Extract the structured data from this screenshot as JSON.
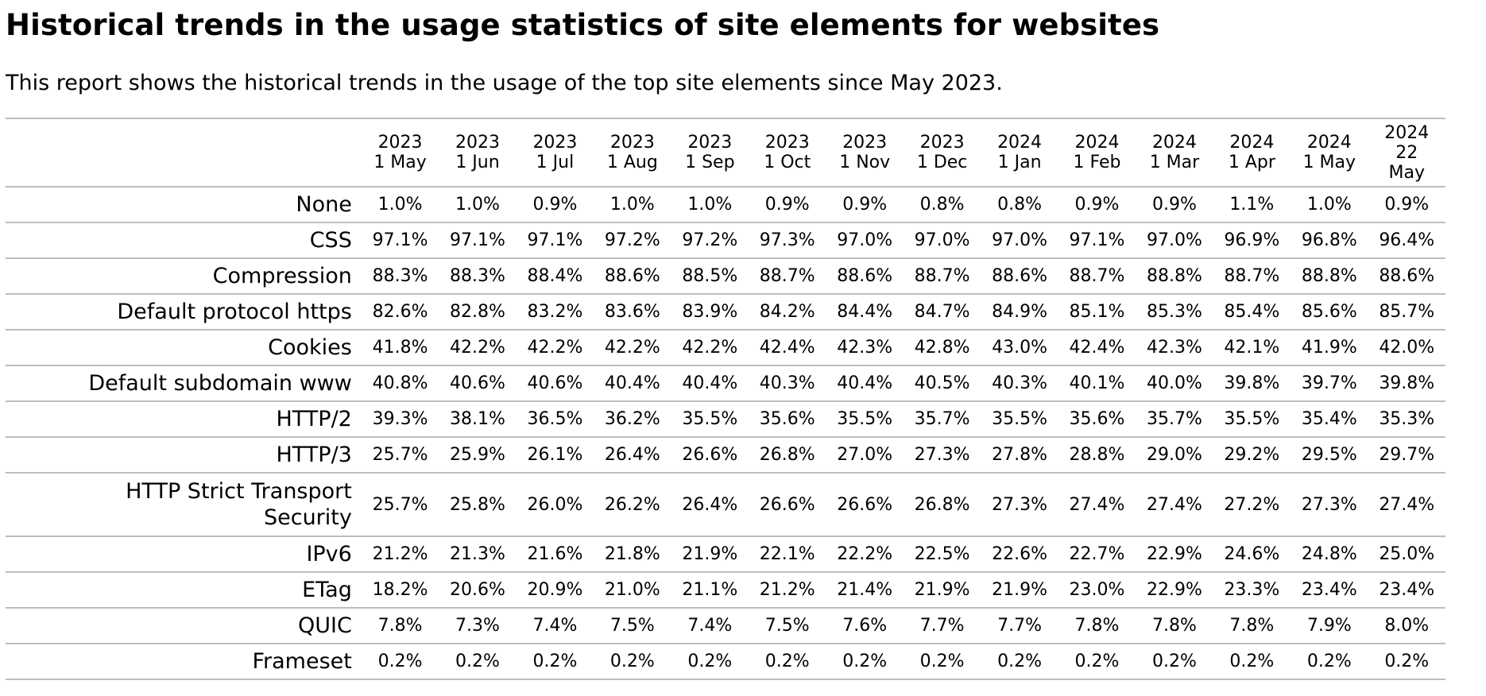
{
  "page": {
    "title": "Historical trends in the usage statistics of site elements for websites",
    "intro": "This report shows the historical trends in the usage of the top site elements since May 2023."
  },
  "table": {
    "columns": [
      {
        "year": "2023",
        "date": "1 May"
      },
      {
        "year": "2023",
        "date": "1 Jun"
      },
      {
        "year": "2023",
        "date": "1 Jul"
      },
      {
        "year": "2023",
        "date": "1 Aug"
      },
      {
        "year": "2023",
        "date": "1 Sep"
      },
      {
        "year": "2023",
        "date": "1 Oct"
      },
      {
        "year": "2023",
        "date": "1 Nov"
      },
      {
        "year": "2023",
        "date": "1 Dec"
      },
      {
        "year": "2024",
        "date": "1 Jan"
      },
      {
        "year": "2024",
        "date": "1 Feb"
      },
      {
        "year": "2024",
        "date": "1 Mar"
      },
      {
        "year": "2024",
        "date": "1 Apr"
      },
      {
        "year": "2024",
        "date": "1 May"
      },
      {
        "year": "2024",
        "date": "22",
        "date2": "May"
      }
    ],
    "rows": [
      {
        "label": "None",
        "values": [
          "1.0%",
          "1.0%",
          "0.9%",
          "1.0%",
          "1.0%",
          "0.9%",
          "0.9%",
          "0.8%",
          "0.8%",
          "0.9%",
          "0.9%",
          "1.1%",
          "1.0%",
          "0.9%"
        ]
      },
      {
        "label": "CSS",
        "values": [
          "97.1%",
          "97.1%",
          "97.1%",
          "97.2%",
          "97.2%",
          "97.3%",
          "97.0%",
          "97.0%",
          "97.0%",
          "97.1%",
          "97.0%",
          "96.9%",
          "96.8%",
          "96.4%"
        ]
      },
      {
        "label": "Compression",
        "values": [
          "88.3%",
          "88.3%",
          "88.4%",
          "88.6%",
          "88.5%",
          "88.7%",
          "88.6%",
          "88.7%",
          "88.6%",
          "88.7%",
          "88.8%",
          "88.7%",
          "88.8%",
          "88.6%"
        ]
      },
      {
        "label": "Default protocol https",
        "values": [
          "82.6%",
          "82.8%",
          "83.2%",
          "83.6%",
          "83.9%",
          "84.2%",
          "84.4%",
          "84.7%",
          "84.9%",
          "85.1%",
          "85.3%",
          "85.4%",
          "85.6%",
          "85.7%"
        ]
      },
      {
        "label": "Cookies",
        "values": [
          "41.8%",
          "42.2%",
          "42.2%",
          "42.2%",
          "42.2%",
          "42.4%",
          "42.3%",
          "42.8%",
          "43.0%",
          "42.4%",
          "42.3%",
          "42.1%",
          "41.9%",
          "42.0%"
        ]
      },
      {
        "label": "Default subdomain www",
        "values": [
          "40.8%",
          "40.6%",
          "40.6%",
          "40.4%",
          "40.4%",
          "40.3%",
          "40.4%",
          "40.5%",
          "40.3%",
          "40.1%",
          "40.0%",
          "39.8%",
          "39.7%",
          "39.8%"
        ]
      },
      {
        "label": "HTTP/2",
        "values": [
          "39.3%",
          "38.1%",
          "36.5%",
          "36.2%",
          "35.5%",
          "35.6%",
          "35.5%",
          "35.7%",
          "35.5%",
          "35.6%",
          "35.7%",
          "35.5%",
          "35.4%",
          "35.3%"
        ]
      },
      {
        "label": "HTTP/3",
        "values": [
          "25.7%",
          "25.9%",
          "26.1%",
          "26.4%",
          "26.6%",
          "26.8%",
          "27.0%",
          "27.3%",
          "27.8%",
          "28.8%",
          "29.0%",
          "29.2%",
          "29.5%",
          "29.7%"
        ]
      },
      {
        "label": "HTTP Strict Transport",
        "label2": "Security",
        "values": [
          "25.7%",
          "25.8%",
          "26.0%",
          "26.2%",
          "26.4%",
          "26.6%",
          "26.6%",
          "26.8%",
          "27.3%",
          "27.4%",
          "27.4%",
          "27.2%",
          "27.3%",
          "27.4%"
        ]
      },
      {
        "label": "IPv6",
        "values": [
          "21.2%",
          "21.3%",
          "21.6%",
          "21.8%",
          "21.9%",
          "22.1%",
          "22.2%",
          "22.5%",
          "22.6%",
          "22.7%",
          "22.9%",
          "24.6%",
          "24.8%",
          "25.0%"
        ]
      },
      {
        "label": "ETag",
        "values": [
          "18.2%",
          "20.6%",
          "20.9%",
          "21.0%",
          "21.1%",
          "21.2%",
          "21.4%",
          "21.9%",
          "21.9%",
          "23.0%",
          "22.9%",
          "23.3%",
          "23.4%",
          "23.4%"
        ]
      },
      {
        "label": "QUIC",
        "values": [
          "7.8%",
          "7.3%",
          "7.4%",
          "7.5%",
          "7.4%",
          "7.5%",
          "7.6%",
          "7.7%",
          "7.7%",
          "7.8%",
          "7.8%",
          "7.8%",
          "7.9%",
          "8.0%"
        ]
      },
      {
        "label": "Frameset",
        "values": [
          "0.2%",
          "0.2%",
          "0.2%",
          "0.2%",
          "0.2%",
          "0.2%",
          "0.2%",
          "0.2%",
          "0.2%",
          "0.2%",
          "0.2%",
          "0.2%",
          "0.2%",
          "0.2%"
        ]
      }
    ]
  }
}
